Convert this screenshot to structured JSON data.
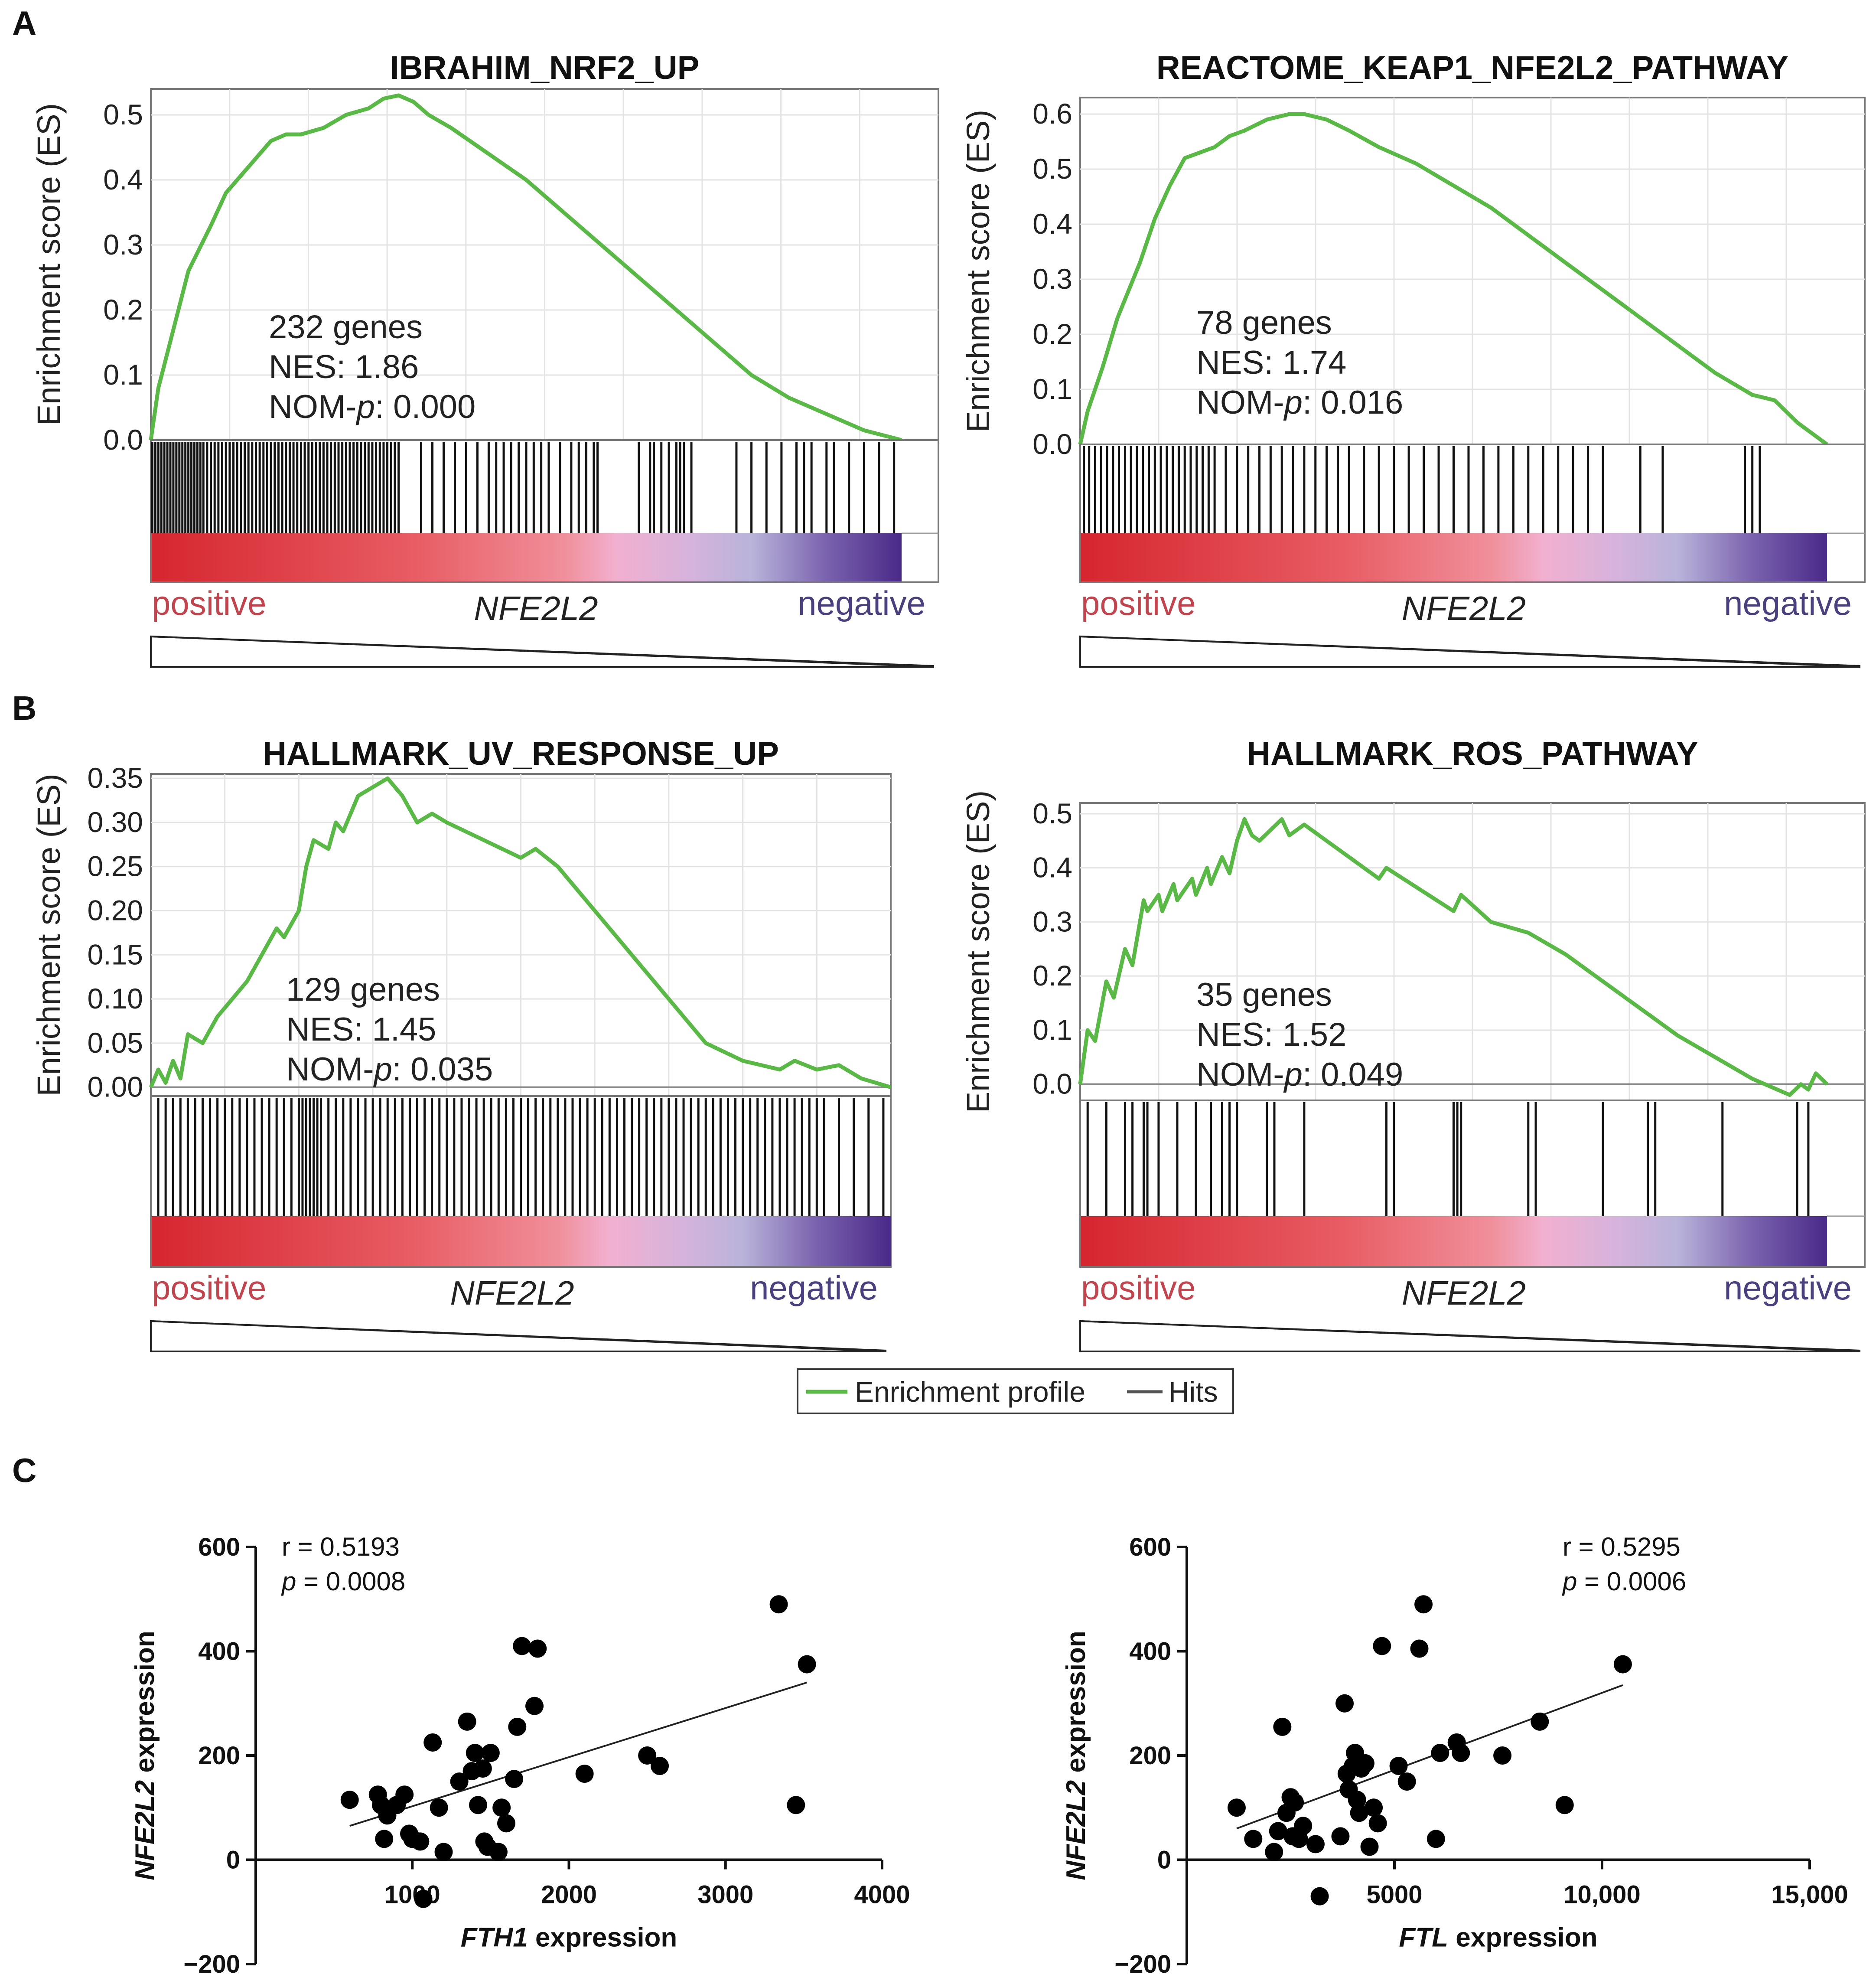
{
  "panels": {
    "A": "A",
    "B": "B",
    "C": "C"
  },
  "common": {
    "y_axis_title": "Enrichment score (ES)",
    "positive_label": "positive",
    "negative_label": "negative",
    "middle_label": "NFE2L2"
  },
  "legend": {
    "enrichment_label": "Enrichment profile",
    "hits_label": "Hits",
    "enrichment_color": "#5ab847",
    "hits_color": "#555555"
  },
  "chart_data": [
    {
      "id": "gsea1",
      "type": "line",
      "title": "IBRAHIM_NRF2_UP",
      "ylabel": "Enrichment score (ES)",
      "ylim": [
        0,
        0.54
      ],
      "yticks": [
        "0.0",
        "0.1",
        "0.2",
        "0.3",
        "0.4",
        "0.5"
      ],
      "ytick_values": [
        0,
        0.1,
        0.2,
        0.3,
        0.4,
        0.5
      ],
      "series": [
        {
          "name": "Enrichment profile",
          "x": [
            0,
            0.01,
            0.03,
            0.05,
            0.08,
            0.1,
            0.13,
            0.16,
            0.18,
            0.2,
            0.23,
            0.26,
            0.29,
            0.31,
            0.33,
            0.35,
            0.37,
            0.4,
            0.45,
            0.5,
            0.55,
            0.6,
            0.65,
            0.7,
            0.75,
            0.8,
            0.85,
            0.9,
            0.95,
            1.0
          ],
          "values": [
            0,
            0.08,
            0.17,
            0.26,
            0.33,
            0.38,
            0.42,
            0.46,
            0.47,
            0.47,
            0.48,
            0.5,
            0.51,
            0.525,
            0.53,
            0.52,
            0.5,
            0.48,
            0.44,
            0.4,
            0.35,
            0.3,
            0.25,
            0.2,
            0.15,
            0.1,
            0.065,
            0.04,
            0.015,
            0.0
          ]
        }
      ],
      "annotations": {
        "genes": "232 genes",
        "nes": "NES: 1.86",
        "nomp_prefix": "NOM-",
        "nomp_italic": "p",
        "nomp_value": ": 0.000"
      },
      "hits": [
        0.002,
        0.006,
        0.01,
        0.014,
        0.018,
        0.022,
        0.026,
        0.03,
        0.034,
        0.038,
        0.042,
        0.046,
        0.05,
        0.054,
        0.058,
        0.062,
        0.066,
        0.07,
        0.075,
        0.08,
        0.085,
        0.09,
        0.095,
        0.1,
        0.105,
        0.11,
        0.115,
        0.12,
        0.125,
        0.13,
        0.135,
        0.14,
        0.145,
        0.15,
        0.155,
        0.16,
        0.165,
        0.17,
        0.175,
        0.18,
        0.185,
        0.19,
        0.195,
        0.2,
        0.205,
        0.21,
        0.215,
        0.22,
        0.225,
        0.23,
        0.235,
        0.24,
        0.245,
        0.25,
        0.255,
        0.26,
        0.265,
        0.27,
        0.275,
        0.28,
        0.285,
        0.29,
        0.295,
        0.3,
        0.305,
        0.31,
        0.315,
        0.32,
        0.325,
        0.33,
        0.36,
        0.375,
        0.39,
        0.405,
        0.42,
        0.435,
        0.45,
        0.46,
        0.47,
        0.48,
        0.49,
        0.5,
        0.51,
        0.52,
        0.53,
        0.545,
        0.56,
        0.57,
        0.58,
        0.59,
        0.595,
        0.65,
        0.665,
        0.67,
        0.68,
        0.69,
        0.7,
        0.705,
        0.71,
        0.72,
        0.78,
        0.8,
        0.82,
        0.84,
        0.86,
        0.87,
        0.88,
        0.9,
        0.91,
        0.93,
        0.95,
        0.97,
        0.99
      ]
    },
    {
      "id": "gsea2",
      "type": "line",
      "title": "REACTOME_KEAP1_NFE2L2_PATHWAY",
      "ylabel": "Enrichment score (ES)",
      "ylim": [
        0,
        0.63
      ],
      "yticks": [
        "0.0",
        "0.1",
        "0.2",
        "0.3",
        "0.4",
        "0.5",
        "0.6"
      ],
      "ytick_values": [
        0,
        0.1,
        0.2,
        0.3,
        0.4,
        0.5,
        0.6
      ],
      "series": [
        {
          "name": "Enrichment profile",
          "x": [
            0,
            0.01,
            0.03,
            0.05,
            0.08,
            0.1,
            0.12,
            0.14,
            0.16,
            0.18,
            0.2,
            0.22,
            0.25,
            0.28,
            0.3,
            0.33,
            0.36,
            0.4,
            0.45,
            0.5,
            0.55,
            0.6,
            0.65,
            0.7,
            0.75,
            0.8,
            0.85,
            0.9,
            0.93,
            0.96,
            1.0
          ],
          "values": [
            0,
            0.06,
            0.14,
            0.23,
            0.33,
            0.41,
            0.47,
            0.52,
            0.53,
            0.54,
            0.56,
            0.57,
            0.59,
            0.6,
            0.6,
            0.59,
            0.57,
            0.54,
            0.51,
            0.47,
            0.43,
            0.38,
            0.33,
            0.28,
            0.23,
            0.18,
            0.13,
            0.09,
            0.08,
            0.04,
            0.0
          ]
        }
      ],
      "annotations": {
        "genes": "78 genes",
        "nes": "NES: 1.74",
        "nomp_prefix": "NOM-",
        "nomp_italic": "p",
        "nomp_value": ": 0.016"
      },
      "hits": [
        0.005,
        0.012,
        0.02,
        0.028,
        0.036,
        0.044,
        0.052,
        0.06,
        0.068,
        0.076,
        0.084,
        0.092,
        0.1,
        0.108,
        0.116,
        0.124,
        0.132,
        0.14,
        0.148,
        0.156,
        0.164,
        0.172,
        0.18,
        0.195,
        0.21,
        0.225,
        0.24,
        0.255,
        0.27,
        0.285,
        0.3,
        0.315,
        0.33,
        0.345,
        0.36,
        0.38,
        0.4,
        0.42,
        0.44,
        0.46,
        0.48,
        0.5,
        0.52,
        0.54,
        0.56,
        0.58,
        0.6,
        0.62,
        0.64,
        0.66,
        0.68,
        0.7,
        0.75,
        0.78,
        0.89,
        0.9,
        0.91
      ]
    },
    {
      "id": "gsea3",
      "type": "line",
      "title": "HALLMARK_UV_RESPONSE_UP",
      "ylabel": "Enrichment score (ES)",
      "ylim": [
        -0.01,
        0.355
      ],
      "yticks": [
        "0.00",
        "0.05",
        "0.10",
        "0.15",
        "0.20",
        "0.25",
        "0.30",
        "0.35"
      ],
      "ytick_values": [
        0,
        0.05,
        0.1,
        0.15,
        0.2,
        0.25,
        0.3,
        0.35
      ],
      "series": [
        {
          "name": "Enrichment profile",
          "x": [
            0,
            0.01,
            0.02,
            0.03,
            0.04,
            0.05,
            0.07,
            0.09,
            0.11,
            0.13,
            0.15,
            0.17,
            0.18,
            0.2,
            0.21,
            0.22,
            0.24,
            0.25,
            0.26,
            0.28,
            0.3,
            0.32,
            0.34,
            0.36,
            0.38,
            0.4,
            0.45,
            0.5,
            0.52,
            0.55,
            0.6,
            0.65,
            0.7,
            0.75,
            0.8,
            0.85,
            0.87,
            0.9,
            0.93,
            0.96,
            1.0
          ],
          "values": [
            0,
            0.02,
            0.005,
            0.03,
            0.01,
            0.06,
            0.05,
            0.08,
            0.1,
            0.12,
            0.15,
            0.18,
            0.17,
            0.2,
            0.25,
            0.28,
            0.27,
            0.3,
            0.29,
            0.33,
            0.34,
            0.35,
            0.33,
            0.3,
            0.31,
            0.3,
            0.28,
            0.26,
            0.27,
            0.25,
            0.2,
            0.15,
            0.1,
            0.05,
            0.03,
            0.02,
            0.03,
            0.02,
            0.025,
            0.01,
            0.0
          ]
        }
      ],
      "annotations": {
        "genes": "129 genes",
        "nes": "NES: 1.45",
        "nomp_prefix": "NOM-",
        "nomp_italic": "p",
        "nomp_value": ": 0.035"
      },
      "hits": [
        0.01,
        0.02,
        0.03,
        0.04,
        0.05,
        0.06,
        0.07,
        0.08,
        0.09,
        0.1,
        0.11,
        0.12,
        0.13,
        0.14,
        0.15,
        0.16,
        0.17,
        0.18,
        0.19,
        0.2,
        0.205,
        0.21,
        0.215,
        0.22,
        0.225,
        0.23,
        0.24,
        0.25,
        0.26,
        0.27,
        0.28,
        0.29,
        0.3,
        0.31,
        0.32,
        0.33,
        0.34,
        0.35,
        0.36,
        0.37,
        0.38,
        0.39,
        0.4,
        0.41,
        0.42,
        0.43,
        0.44,
        0.45,
        0.46,
        0.47,
        0.48,
        0.49,
        0.5,
        0.51,
        0.52,
        0.53,
        0.54,
        0.55,
        0.56,
        0.57,
        0.58,
        0.59,
        0.6,
        0.61,
        0.62,
        0.63,
        0.64,
        0.65,
        0.66,
        0.67,
        0.68,
        0.69,
        0.7,
        0.71,
        0.72,
        0.73,
        0.74,
        0.75,
        0.76,
        0.77,
        0.78,
        0.79,
        0.8,
        0.81,
        0.82,
        0.83,
        0.84,
        0.85,
        0.86,
        0.87,
        0.88,
        0.89,
        0.9,
        0.91,
        0.93,
        0.95,
        0.97,
        0.99
      ]
    },
    {
      "id": "gsea4",
      "type": "line",
      "title": "HALLMARK_ROS_PATHWAY",
      "ylabel": "Enrichment score (ES)",
      "ylim": [
        -0.03,
        0.52
      ],
      "yticks": [
        "0.0",
        "0.1",
        "0.2",
        "0.3",
        "0.4",
        "0.5"
      ],
      "ytick_values": [
        0,
        0.1,
        0.2,
        0.3,
        0.4,
        0.5
      ],
      "series": [
        {
          "name": "Enrichment profile",
          "x": [
            0,
            0.01,
            0.02,
            0.035,
            0.045,
            0.06,
            0.07,
            0.085,
            0.09,
            0.105,
            0.11,
            0.125,
            0.13,
            0.15,
            0.155,
            0.17,
            0.175,
            0.19,
            0.2,
            0.21,
            0.22,
            0.23,
            0.24,
            0.27,
            0.28,
            0.3,
            0.31,
            0.4,
            0.41,
            0.5,
            0.51,
            0.55,
            0.6,
            0.65,
            0.7,
            0.75,
            0.8,
            0.85,
            0.9,
            0.95,
            0.965,
            0.975,
            0.985,
            1.0
          ],
          "values": [
            0,
            0.1,
            0.08,
            0.19,
            0.16,
            0.25,
            0.22,
            0.34,
            0.32,
            0.35,
            0.32,
            0.37,
            0.34,
            0.38,
            0.35,
            0.4,
            0.37,
            0.42,
            0.39,
            0.45,
            0.49,
            0.46,
            0.45,
            0.49,
            0.46,
            0.48,
            0.47,
            0.38,
            0.4,
            0.32,
            0.35,
            0.3,
            0.28,
            0.24,
            0.19,
            0.14,
            0.09,
            0.05,
            0.01,
            -0.02,
            0.0,
            -0.01,
            0.02,
            0.0
          ]
        }
      ],
      "annotations": {
        "genes": "35 genes",
        "nes": "NES: 1.52",
        "nomp_prefix": "NOM-",
        "nomp_italic": "p",
        "nomp_value": ": 0.049"
      },
      "hits": [
        0.01,
        0.035,
        0.06,
        0.07,
        0.085,
        0.09,
        0.105,
        0.13,
        0.155,
        0.175,
        0.19,
        0.2,
        0.21,
        0.25,
        0.26,
        0.3,
        0.41,
        0.42,
        0.5,
        0.505,
        0.51,
        0.6,
        0.61,
        0.7,
        0.76,
        0.77,
        0.86,
        0.96,
        0.975
      ]
    },
    {
      "id": "scatter1",
      "type": "scatter",
      "xlabel_italic": "FTH1",
      "xlabel_rest": " expression",
      "ylabel_italic": "NFE2L2",
      "ylabel_rest": " expression",
      "xlim": [
        0,
        4000
      ],
      "ylim": [
        -200,
        600
      ],
      "xticks": [
        1000,
        2000,
        3000,
        4000
      ],
      "xtick_labels": [
        "1000",
        "2000",
        "3000",
        "4000"
      ],
      "yticks": [
        -200,
        0,
        200,
        400,
        600
      ],
      "ytick_labels": [
        "-200",
        "0",
        "200",
        "400",
        "600"
      ],
      "stat_r": "r = 0.5193",
      "stat_p_italic": "p",
      "stat_p_rest": " = 0.0008",
      "x": [
        600,
        780,
        800,
        820,
        840,
        900,
        950,
        980,
        1000,
        1050,
        1070,
        1130,
        1170,
        1200,
        1300,
        1350,
        1380,
        1400,
        1420,
        1450,
        1460,
        1480,
        1500,
        1550,
        1570,
        1600,
        1650,
        1670,
        1700,
        1780,
        1800,
        2100,
        2500,
        2580,
        3340,
        3450,
        3520
      ],
      "values": [
        115,
        125,
        105,
        40,
        85,
        105,
        125,
        50,
        40,
        35,
        -75,
        225,
        100,
        15,
        150,
        265,
        170,
        205,
        105,
        175,
        35,
        25,
        205,
        15,
        100,
        70,
        155,
        255,
        410,
        295,
        405,
        165,
        200,
        180,
        490,
        105,
        375
      ],
      "regression_line": {
        "x": [
          600,
          3520
        ],
        "values": [
          65,
          340
        ]
      }
    },
    {
      "id": "scatter2",
      "type": "scatter",
      "xlabel_italic": "FTL",
      "xlabel_rest": " expression",
      "ylabel_italic": "NFE2L2",
      "ylabel_rest": " expression",
      "xlim": [
        0,
        15000
      ],
      "ylim": [
        -200,
        600
      ],
      "xticks": [
        5000,
        10000,
        15000
      ],
      "xtick_labels": [
        "5000",
        "10,000",
        "15,000"
      ],
      "yticks": [
        -200,
        0,
        200,
        400,
        600
      ],
      "ytick_labels": [
        "-200",
        "0",
        "200",
        "400",
        "600"
      ],
      "stat_r": "r = 0.5295",
      "stat_p_italic": "p",
      "stat_p_rest": " = 0.0006",
      "x": [
        1200,
        1600,
        2100,
        2200,
        2300,
        2400,
        2500,
        2550,
        2600,
        2700,
        2800,
        3100,
        3200,
        3700,
        3800,
        3850,
        3900,
        4000,
        4050,
        4100,
        4150,
        4200,
        4300,
        4400,
        4500,
        4600,
        4700,
        5100,
        5300,
        5600,
        5700,
        6000,
        6100,
        6500,
        6600,
        7600,
        8500,
        9100,
        10500
      ],
      "values": [
        100,
        40,
        15,
        55,
        255,
        90,
        120,
        45,
        110,
        40,
        65,
        30,
        -70,
        45,
        300,
        165,
        135,
        180,
        205,
        115,
        90,
        175,
        185,
        25,
        100,
        70,
        410,
        180,
        150,
        405,
        490,
        40,
        205,
        225,
        205,
        200,
        265,
        105,
        375
      ],
      "regression_line": {
        "x": [
          1200,
          10500
        ],
        "values": [
          60,
          335
        ]
      }
    }
  ]
}
